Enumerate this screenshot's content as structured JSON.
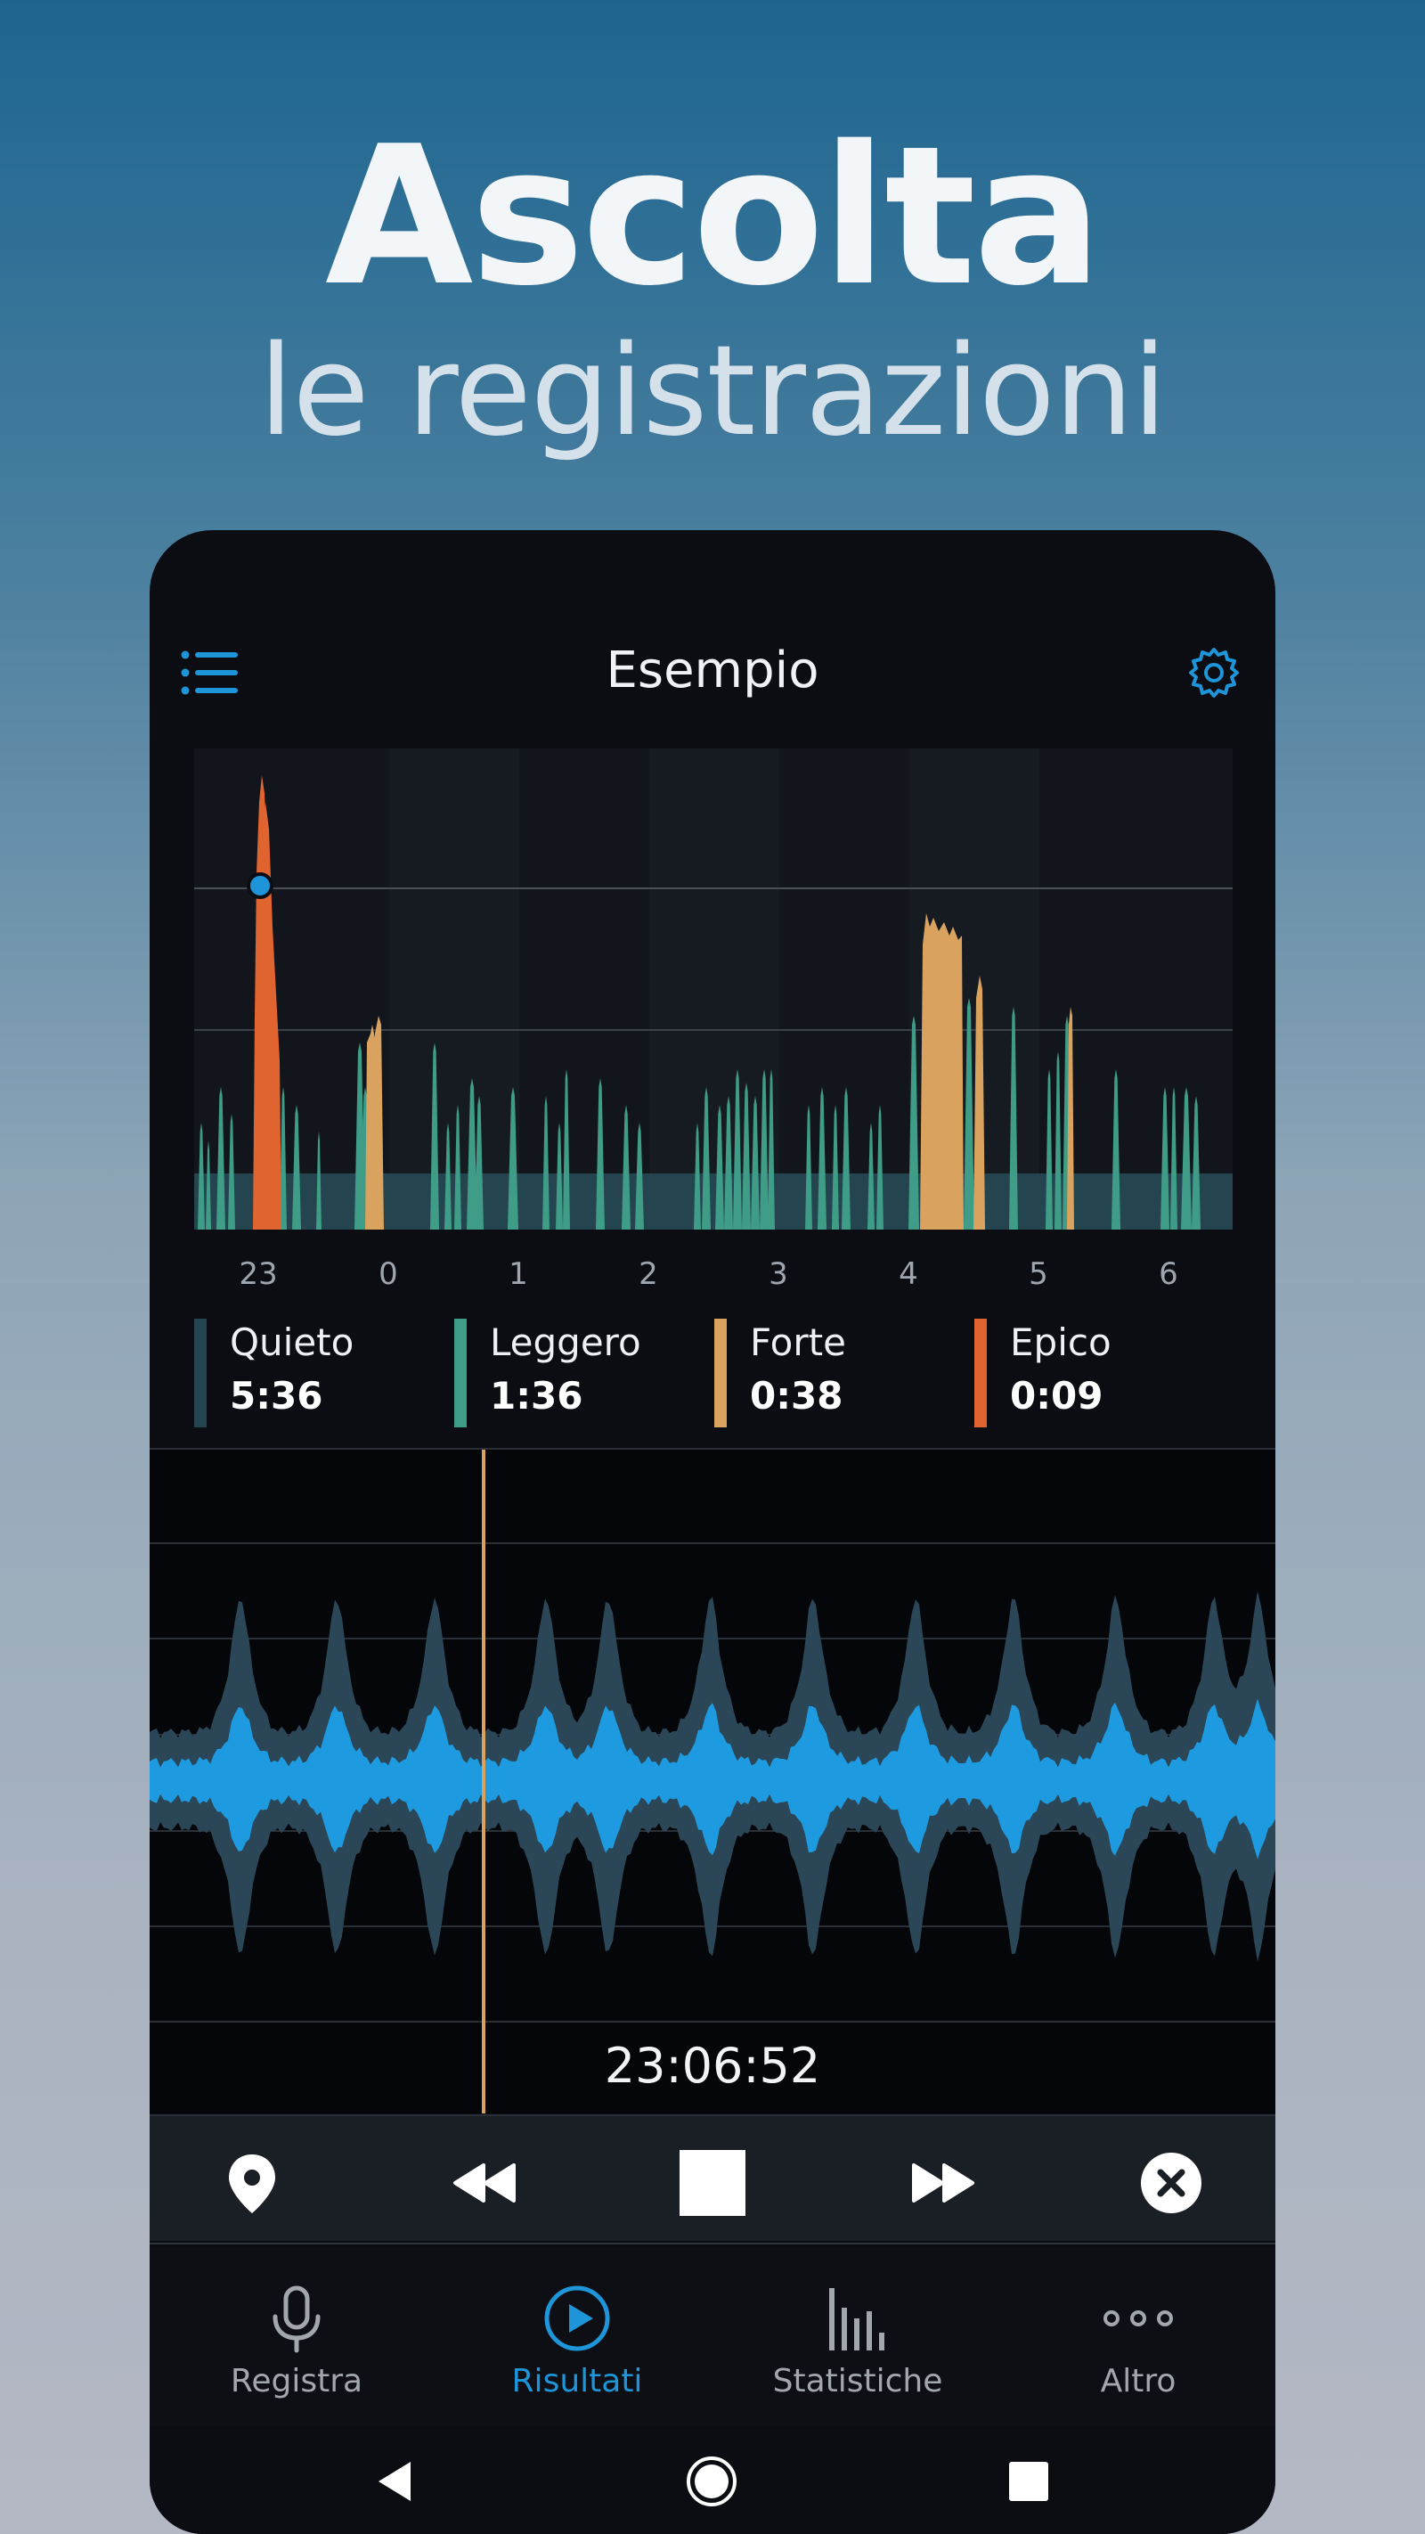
{
  "promo": {
    "title": "Ascolta",
    "subtitle": "le registrazioni"
  },
  "app": {
    "title": "Esempio",
    "menu_icon": "list-icon",
    "settings_icon": "gear-icon"
  },
  "colors": {
    "quiet": "#24444f",
    "light": "#3f9c86",
    "loud": "#d9a35f",
    "epic": "#e0642f",
    "accent": "#1e95d8",
    "playhead": "#d9a35f"
  },
  "chart_data": {
    "type": "area",
    "x_tick_labels": [
      "23",
      "0",
      "1",
      "2",
      "3",
      "4",
      "5",
      "6"
    ],
    "series": [
      {
        "name": "Quieto",
        "color": "#24444f"
      },
      {
        "name": "Leggero",
        "color": "#3f9c86"
      },
      {
        "name": "Forte",
        "color": "#d9a35f"
      },
      {
        "name": "Epico",
        "color": "#e0642f"
      }
    ],
    "grid": true
  },
  "legend": [
    {
      "label": "Quieto",
      "value": "5:36",
      "color": "#24444f"
    },
    {
      "label": "Leggero",
      "value": "1:36",
      "color": "#3f9c86"
    },
    {
      "label": "Forte",
      "value": "0:38",
      "color": "#d9a35f"
    },
    {
      "label": "Epico",
      "value": "0:09",
      "color": "#e0642f"
    }
  ],
  "player": {
    "time": "23:06:52",
    "controls": [
      "location-pin-icon",
      "rewind-icon",
      "stop-icon",
      "fast-forward-icon",
      "close-icon"
    ]
  },
  "tabs": [
    {
      "label": "Registra",
      "icon": "microphone-icon",
      "active": false
    },
    {
      "label": "Risultati",
      "icon": "play-circle-icon",
      "active": true
    },
    {
      "label": "Statistiche",
      "icon": "bar-chart-icon",
      "active": false
    },
    {
      "label": "Altro",
      "icon": "more-dots-icon",
      "active": false
    }
  ],
  "system_nav": [
    "back-icon",
    "home-icon",
    "recents-icon"
  ]
}
